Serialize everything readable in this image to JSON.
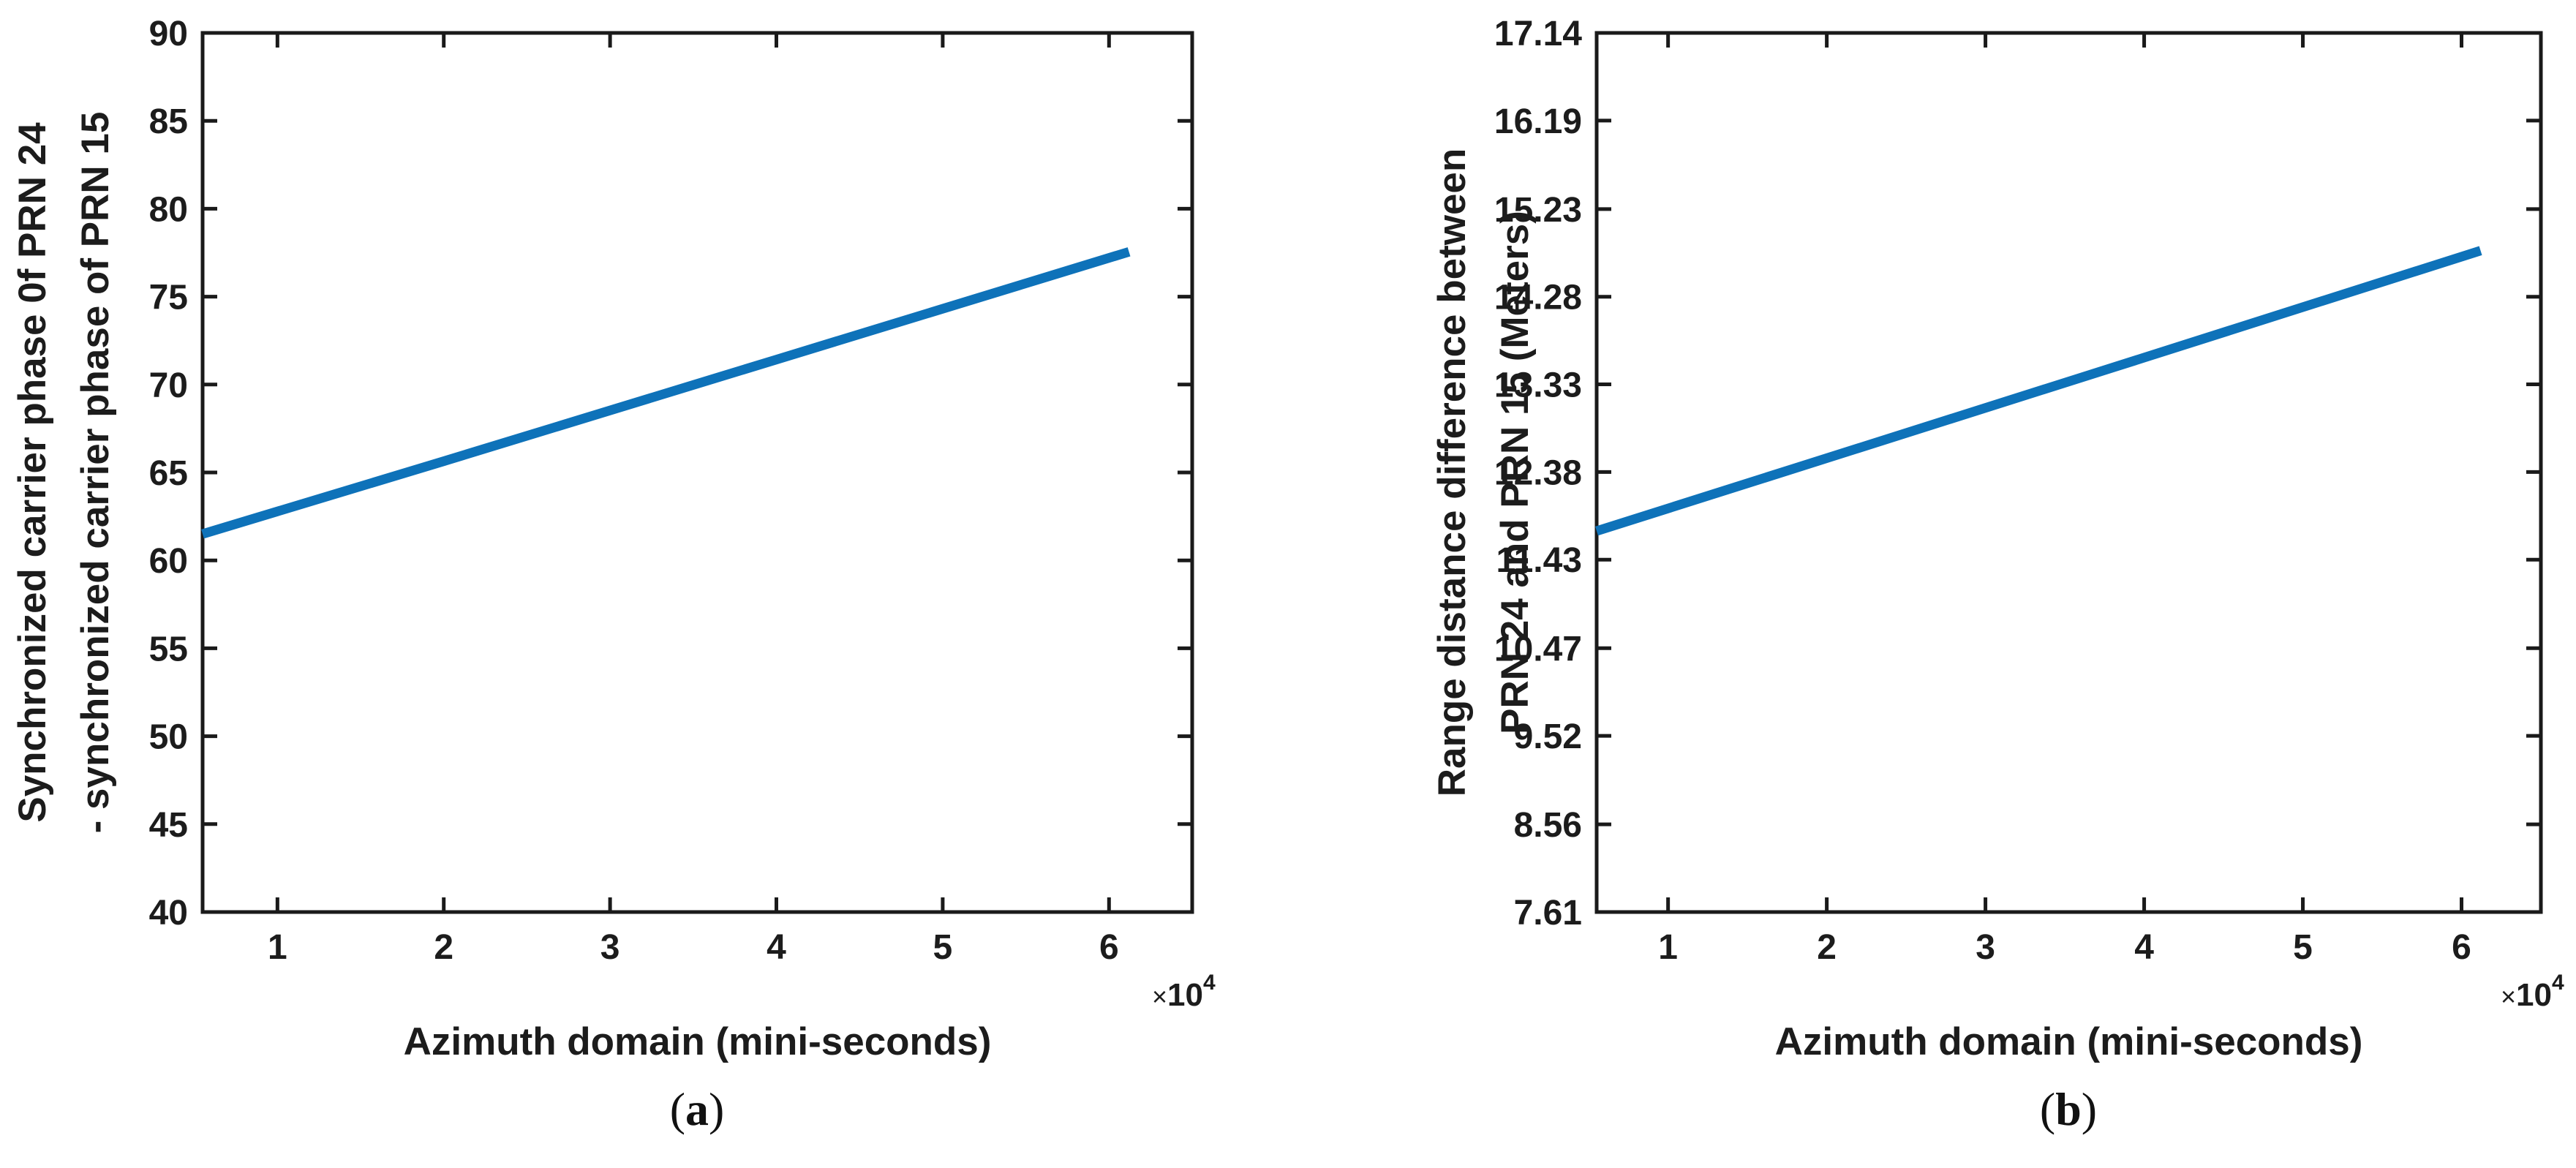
{
  "figure": {
    "background": "#ffffff",
    "text_color": "#1c1c1c",
    "panel_count": 2
  },
  "chart_data": [
    {
      "type": "line",
      "panel": "a",
      "caption": {
        "open": "(",
        "letter": "a",
        "close": ")"
      },
      "xlabel": "Azimuth domain (mini-seconds)",
      "ylabel_lines": [
        "Synchronized carrier phase 0f PRN 24",
        "- synchronized carrier phase of PRN 15"
      ],
      "x_exponent": {
        "times": "×",
        "base": "10",
        "power": "4"
      },
      "xlim": [
        5500,
        65000
      ],
      "ylim": [
        40,
        90
      ],
      "xticks": {
        "values": [
          10000,
          20000,
          30000,
          40000,
          50000,
          60000
        ],
        "labels": [
          "1",
          "2",
          "3",
          "4",
          "5",
          "6"
        ]
      },
      "yticks": {
        "values": [
          40,
          45,
          50,
          55,
          60,
          65,
          70,
          75,
          80,
          85,
          90
        ],
        "labels": [
          "40",
          "45",
          "50",
          "55",
          "60",
          "65",
          "70",
          "75",
          "80",
          "85",
          "90"
        ]
      },
      "grid": false,
      "legend": null,
      "axis_color": "#1a1a1a",
      "line_color": "#0e72b9",
      "series": [
        {
          "x": [
            5500,
            20000,
            40000,
            61200
          ],
          "y": [
            61.5,
            65.64,
            71.42,
            77.55
          ]
        }
      ]
    },
    {
      "type": "line",
      "panel": "b",
      "caption": {
        "open": "(",
        "letter": "b",
        "close": ")"
      },
      "xlabel": "Azimuth domain (mini-seconds)",
      "ylabel_lines": [
        "Range distance difference between",
        "PRN 24 and PRN 15 (Meters)"
      ],
      "x_exponent": {
        "times": "×",
        "base": "10",
        "power": "4"
      },
      "xlim": [
        5500,
        65000
      ],
      "ylim": [
        7.61,
        17.14
      ],
      "xticks": {
        "values": [
          10000,
          20000,
          30000,
          40000,
          50000,
          60000
        ],
        "labels": [
          "1",
          "2",
          "3",
          "4",
          "5",
          "6"
        ]
      },
      "yticks": {
        "values": [
          7.61,
          8.56,
          9.52,
          10.47,
          11.43,
          12.38,
          13.33,
          14.28,
          15.23,
          16.19,
          17.14
        ],
        "labels": [
          "7.61",
          "8.56",
          "9.52",
          "10.47",
          "11.43",
          "12.38",
          "13.33",
          "14.28",
          "15.23",
          "16.19",
          "17.14"
        ]
      },
      "grid": false,
      "legend": null,
      "axis_color": "#1a1a1a",
      "line_color": "#0e72b9",
      "series": [
        {
          "x": [
            5500,
            20000,
            40000,
            61200
          ],
          "y": [
            11.74,
            12.53,
            13.62,
            14.78
          ]
        }
      ]
    }
  ]
}
